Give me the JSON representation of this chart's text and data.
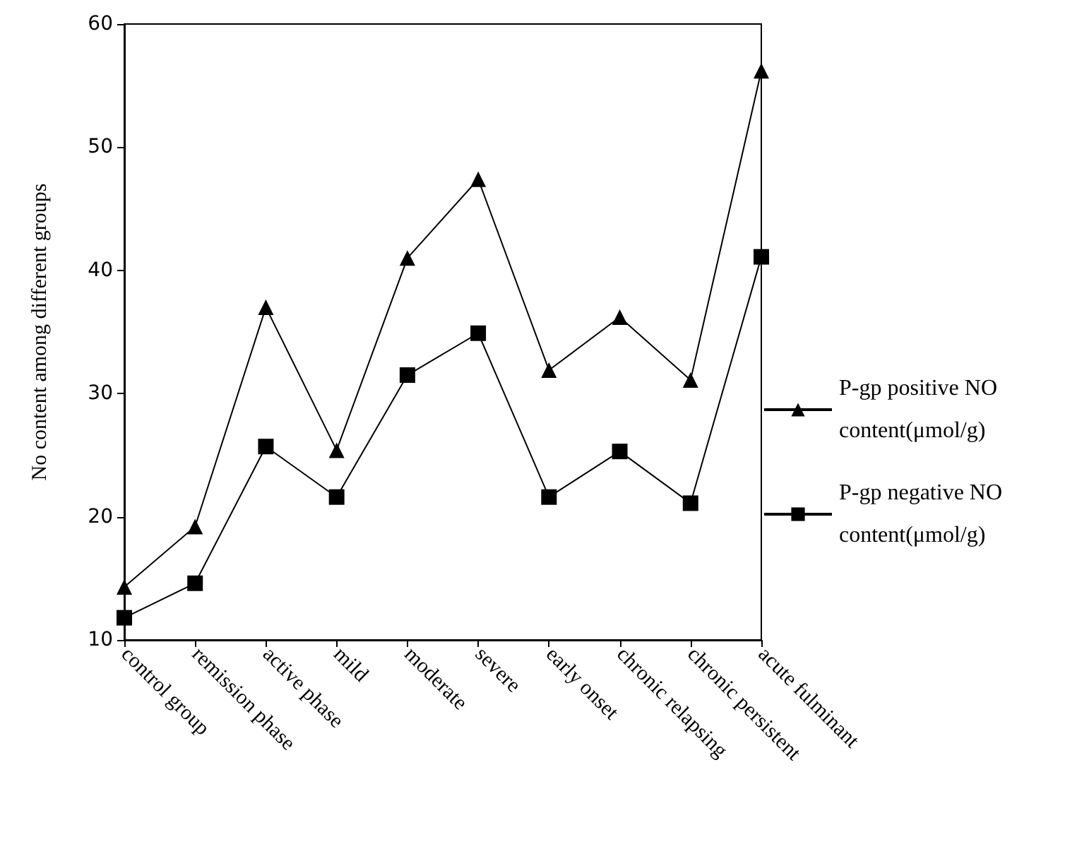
{
  "chart_data": {
    "type": "line",
    "ylabel": "No content among different groups",
    "categories": [
      "control group",
      "remission phase",
      "active phase",
      "mild",
      "moderate",
      "severe",
      "early onset",
      "chronic relapsing",
      "chronic persistent",
      "acute fulminant"
    ],
    "series": [
      {
        "name": "P-gp positive NO content(μmol/g)",
        "color": "#000000",
        "marker": "triangle",
        "values": [
          14.3,
          19.2,
          37,
          25.4,
          41,
          47.4,
          31.9,
          36.2,
          31.1,
          56.2
        ]
      },
      {
        "name": "P-gp negative NO content(μmol/g)",
        "color": "#000000",
        "marker": "square",
        "values": [
          11.8,
          14.6,
          25.7,
          21.6,
          31.5,
          34.9,
          21.6,
          25.3,
          21.1,
          41.1
        ]
      }
    ],
    "ylim": [
      10,
      60
    ],
    "yticks": [
      10,
      20,
      30,
      40,
      50,
      60
    ],
    "grid": false,
    "legend": "right",
    "line_style": "solid"
  }
}
